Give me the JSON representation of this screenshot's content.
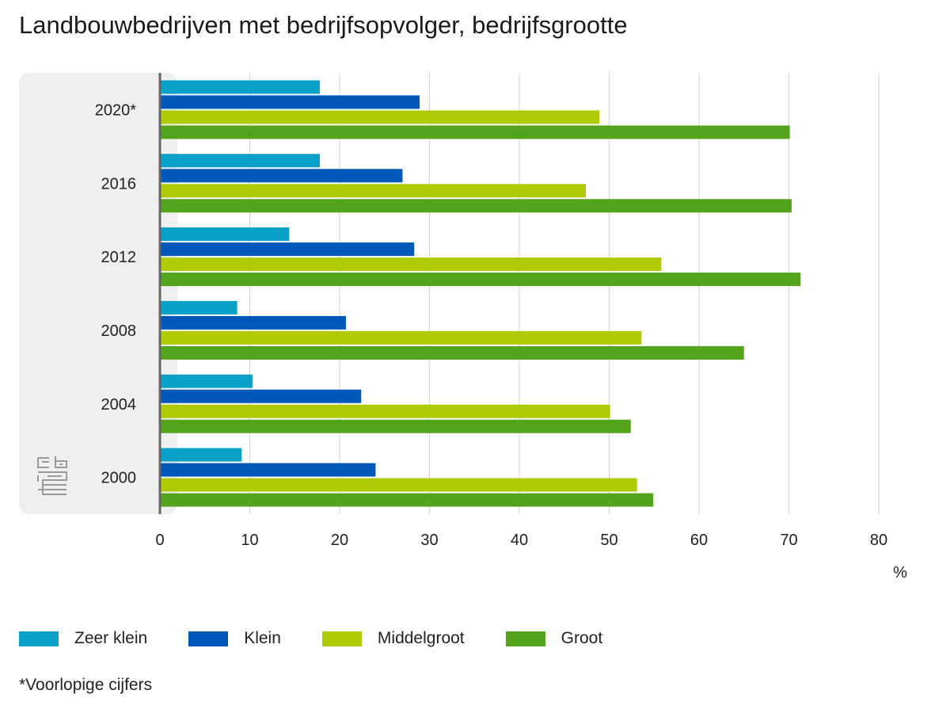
{
  "colors": {
    "zeer_klein": "#0aa0c8",
    "klein": "#0058b8",
    "middelgroot": "#afcb05",
    "groot": "#53a31d",
    "panel": "#efefef",
    "grid": "#d2d2d2",
    "axis": "#666666"
  },
  "icons": {
    "logo": "cbs-logo-icon"
  },
  "chart_data": {
    "type": "bar",
    "orientation": "horizontal",
    "title": "Landbouwbedrijven met bedrijfsopvolger, bedrijfsgrootte",
    "xlabel": "%",
    "ylabel": "",
    "xlim": [
      0,
      80
    ],
    "xticks": [
      "0",
      "10",
      "20",
      "30",
      "40",
      "50",
      "60",
      "70",
      "80"
    ],
    "grid": true,
    "legend_position": "bottom",
    "categories": [
      "2020*",
      "2016",
      "2012",
      "2008",
      "2004",
      "2000"
    ],
    "series": [
      {
        "name": "Zeer klein",
        "color": "#0aa0c8",
        "values": [
          17.8,
          17.8,
          14.4,
          8.6,
          10.3,
          9.1
        ]
      },
      {
        "name": "Klein",
        "color": "#0058b8",
        "values": [
          28.9,
          27.0,
          28.3,
          20.7,
          22.4,
          24.0
        ]
      },
      {
        "name": "Middelgroot",
        "color": "#afcb05",
        "values": [
          48.9,
          47.4,
          55.8,
          53.6,
          50.1,
          53.1
        ]
      },
      {
        "name": "Groot",
        "color": "#53a31d",
        "values": [
          70.1,
          70.3,
          71.3,
          65.0,
          52.4,
          54.9
        ]
      }
    ],
    "footnote": "*Voorlopige cijfers"
  }
}
